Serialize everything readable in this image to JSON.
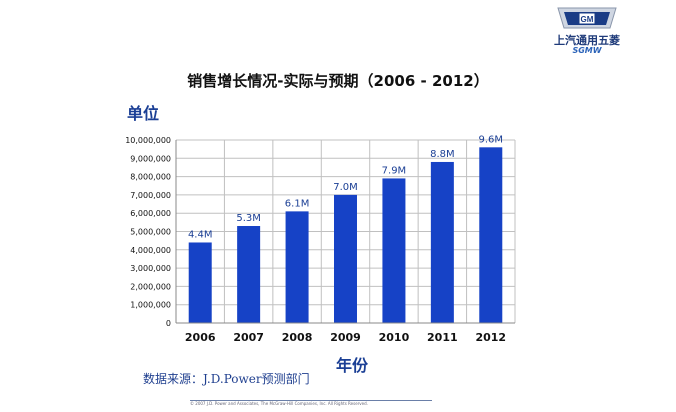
{
  "brand": {
    "logo_badge": "GM",
    "name": "上汽通用五菱",
    "sub": "SGMW"
  },
  "footer_text": "© 2007 J.D. Power and Associates, The McGraw-Hill Companies, Inc. All Rights Reserved.",
  "source_text": "数据来源：J.D.Power预测部门",
  "colors": {
    "bar": "#1642c6",
    "axis_text": "#111111",
    "label_text": "#1b3f95",
    "grid": "#c0c0c0"
  },
  "chart_data": {
    "type": "bar",
    "title": "销售增长情况-实际与预期（2006 - 2012）",
    "ylabel": "单位",
    "xlabel": "年份",
    "categories": [
      "2006",
      "2007",
      "2008",
      "2009",
      "2010",
      "2011",
      "2012"
    ],
    "values": [
      4400000,
      5300000,
      6100000,
      7000000,
      7900000,
      8800000,
      9600000
    ],
    "data_labels": [
      "4.4M",
      "5.3M",
      "6.1M",
      "7.0M",
      "7.9M",
      "8.8M",
      "9.6M"
    ],
    "ylim": [
      0,
      10000000
    ],
    "yticks": [
      "0",
      "1,000,000",
      "2,000,000",
      "3,000,000",
      "4,000,000",
      "5,000,000",
      "6,000,000",
      "7,000,000",
      "8,000,000",
      "9,000,000",
      "10,000,000"
    ],
    "grid": true,
    "legend": "none"
  }
}
